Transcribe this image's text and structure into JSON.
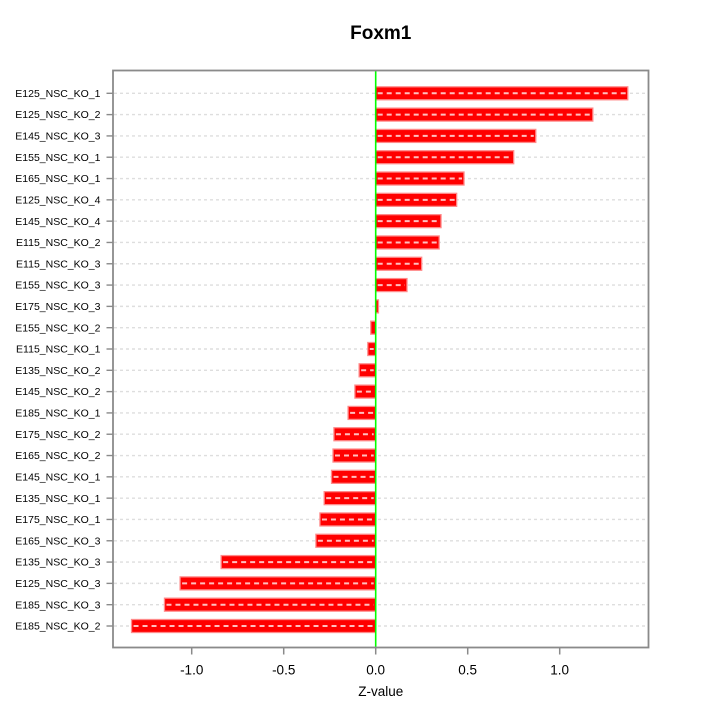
{
  "figure": {
    "title": "Foxm1",
    "x_axis_label": "Z-value"
  },
  "chart_data": {
    "type": "bar",
    "orientation": "horizontal",
    "title": "Foxm1",
    "xlabel": "Z-value",
    "ylabel": "",
    "legend": "none",
    "grid": "horizontal-dashed",
    "zero_line": 0.0,
    "categories": [
      "E125_NSC_KO_1",
      "E125_NSC_KO_2",
      "E145_NSC_KO_3",
      "E155_NSC_KO_1",
      "E165_NSC_KO_1",
      "E125_NSC_KO_4",
      "E145_NSC_KO_4",
      "E115_NSC_KO_2",
      "E115_NSC_KO_3",
      "E155_NSC_KO_3",
      "E175_NSC_KO_3",
      "E155_NSC_KO_2",
      "E115_NSC_KO_1",
      "E135_NSC_KO_2",
      "E145_NSC_KO_2",
      "E185_NSC_KO_1",
      "E175_NSC_KO_2",
      "E165_NSC_KO_2",
      "E145_NSC_KO_1",
      "E135_NSC_KO_1",
      "E175_NSC_KO_1",
      "E165_NSC_KO_3",
      "E135_NSC_KO_3",
      "E125_NSC_KO_3",
      "E185_NSC_KO_3",
      "E185_NSC_KO_2"
    ],
    "values": [
      1.37,
      1.18,
      0.87,
      0.75,
      0.48,
      0.44,
      0.355,
      0.345,
      0.25,
      0.17,
      0.015,
      -0.027,
      -0.043,
      -0.09,
      -0.113,
      -0.15,
      -0.227,
      -0.232,
      -0.24,
      -0.28,
      -0.303,
      -0.325,
      -0.84,
      -1.063,
      -1.148,
      -1.327
    ],
    "x_axis": {
      "ticks": [
        -1.0,
        -0.5,
        0.0,
        0.5,
        1.0
      ],
      "tick_labels": [
        "-1.0",
        "-0.5",
        "0.0",
        "0.5",
        "1.0"
      ],
      "range": [
        -1.43,
        1.48
      ]
    },
    "colors": {
      "bar": "#ff0000",
      "bar_border": "#ff8a8a",
      "bar_dash": "rgba(255,255,255,0.75)",
      "zero_line": "#00ff00",
      "grid": "#dedede",
      "axis": "#8a8a8a",
      "text": "#000000",
      "background": "#ffffff"
    }
  }
}
